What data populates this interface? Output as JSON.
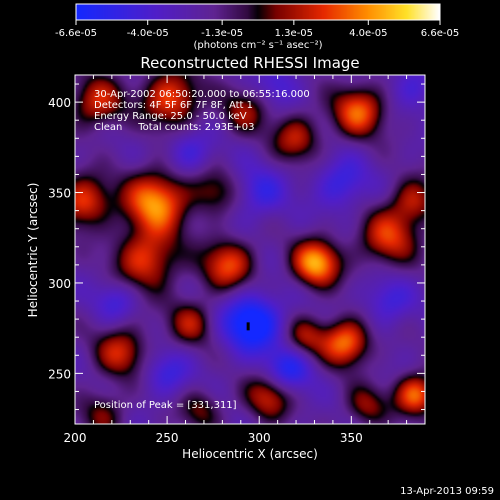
{
  "chart_data": {
    "type": "heatmap",
    "title": "Reconstructed RHESSI Image",
    "xlabel": "Heliocentric X (arcsec)",
    "ylabel": "Heliocentric Y (arcsec)",
    "xlim": [
      200,
      390
    ],
    "ylim": [
      222,
      415
    ],
    "x_ticks": [
      200,
      250,
      300,
      350
    ],
    "y_ticks": [
      250,
      300,
      350,
      400
    ],
    "colorbar": {
      "min": -6.6e-05,
      "max": 6.6e-05,
      "tick_labels": [
        "-6.6e-05",
        "-4.0e-05",
        "-1.3e-05",
        "1.3e-05",
        "4.0e-05",
        "6.6e-05"
      ],
      "unit_label": "(photons cm⁻² s⁻¹ asec⁻²)"
    },
    "annotations": [
      "30-Apr-2002 06:50:20.000 to 06:55:16.000",
      "Detectors: 4F 5F 6F 7F 8F, Att 1",
      "Energy Range: 25.0 - 50.0 keV",
      "Clean     Total counts: 2.93E+03"
    ],
    "peak_label": "Position of Peak = [331,311]",
    "peak": {
      "x": 331,
      "y": 311
    },
    "min_marker": {
      "x": 294,
      "y": 276
    },
    "grid": false,
    "blobs": [
      {
        "x": 331,
        "y": 311,
        "v": 6.6e-05,
        "s": 9
      },
      {
        "x": 244,
        "y": 345,
        "v": 6.2e-05,
        "s": 12
      },
      {
        "x": 347,
        "y": 267,
        "v": 5.8e-05,
        "s": 9
      },
      {
        "x": 252,
        "y": 402,
        "v": 5e-05,
        "s": 11
      },
      {
        "x": 354,
        "y": 395,
        "v": 5.2e-05,
        "s": 10
      },
      {
        "x": 205,
        "y": 345,
        "v": 4.8e-05,
        "s": 10
      },
      {
        "x": 239,
        "y": 313,
        "v": 4.6e-05,
        "s": 12
      },
      {
        "x": 283,
        "y": 310,
        "v": 4.8e-05,
        "s": 10
      },
      {
        "x": 370,
        "y": 325,
        "v": 4.4e-05,
        "s": 11
      },
      {
        "x": 225,
        "y": 262,
        "v": 4e-05,
        "s": 10
      },
      {
        "x": 305,
        "y": 237,
        "v": 4e-05,
        "s": 9
      },
      {
        "x": 385,
        "y": 238,
        "v": 5.6e-05,
        "s": 8
      },
      {
        "x": 212,
        "y": 400,
        "v": 4.2e-05,
        "s": 10
      },
      {
        "x": 263,
        "y": 278,
        "v": 3.4e-05,
        "s": 9
      },
      {
        "x": 325,
        "y": 270,
        "v": 3.2e-05,
        "s": 8
      },
      {
        "x": 320,
        "y": 380,
        "v": 3.8e-05,
        "s": 9
      },
      {
        "x": 292,
        "y": 395,
        "v": 3e-05,
        "s": 9
      },
      {
        "x": 276,
        "y": 350,
        "v": 2.8e-05,
        "s": 9
      },
      {
        "x": 384,
        "y": 345,
        "v": 3.6e-05,
        "s": 9
      },
      {
        "x": 358,
        "y": 232,
        "v": 3e-05,
        "s": 8
      },
      {
        "x": 215,
        "y": 228,
        "v": 2.6e-05,
        "s": 9
      },
      {
        "x": 268,
        "y": 230,
        "v": 2.6e-05,
        "s": 8
      },
      {
        "x": 296,
        "y": 278,
        "v": -5.6e-05,
        "s": 11
      },
      {
        "x": 316,
        "y": 252,
        "v": -3.6e-05,
        "s": 9
      },
      {
        "x": 345,
        "y": 355,
        "v": -2.8e-05,
        "s": 10
      },
      {
        "x": 300,
        "y": 350,
        "v": -2.6e-05,
        "s": 10
      },
      {
        "x": 262,
        "y": 372,
        "v": -2.4e-05,
        "s": 9
      },
      {
        "x": 370,
        "y": 290,
        "v": -2.4e-05,
        "s": 9
      },
      {
        "x": 222,
        "y": 290,
        "v": -2.2e-05,
        "s": 8
      },
      {
        "x": 250,
        "y": 250,
        "v": -2.4e-05,
        "s": 9
      },
      {
        "x": 385,
        "y": 410,
        "v": -2e-05,
        "s": 9
      },
      {
        "x": 310,
        "y": 410,
        "v": -2e-05,
        "s": 8
      }
    ]
  },
  "footer": {
    "timestamp": "13-Apr-2013 09:59"
  }
}
